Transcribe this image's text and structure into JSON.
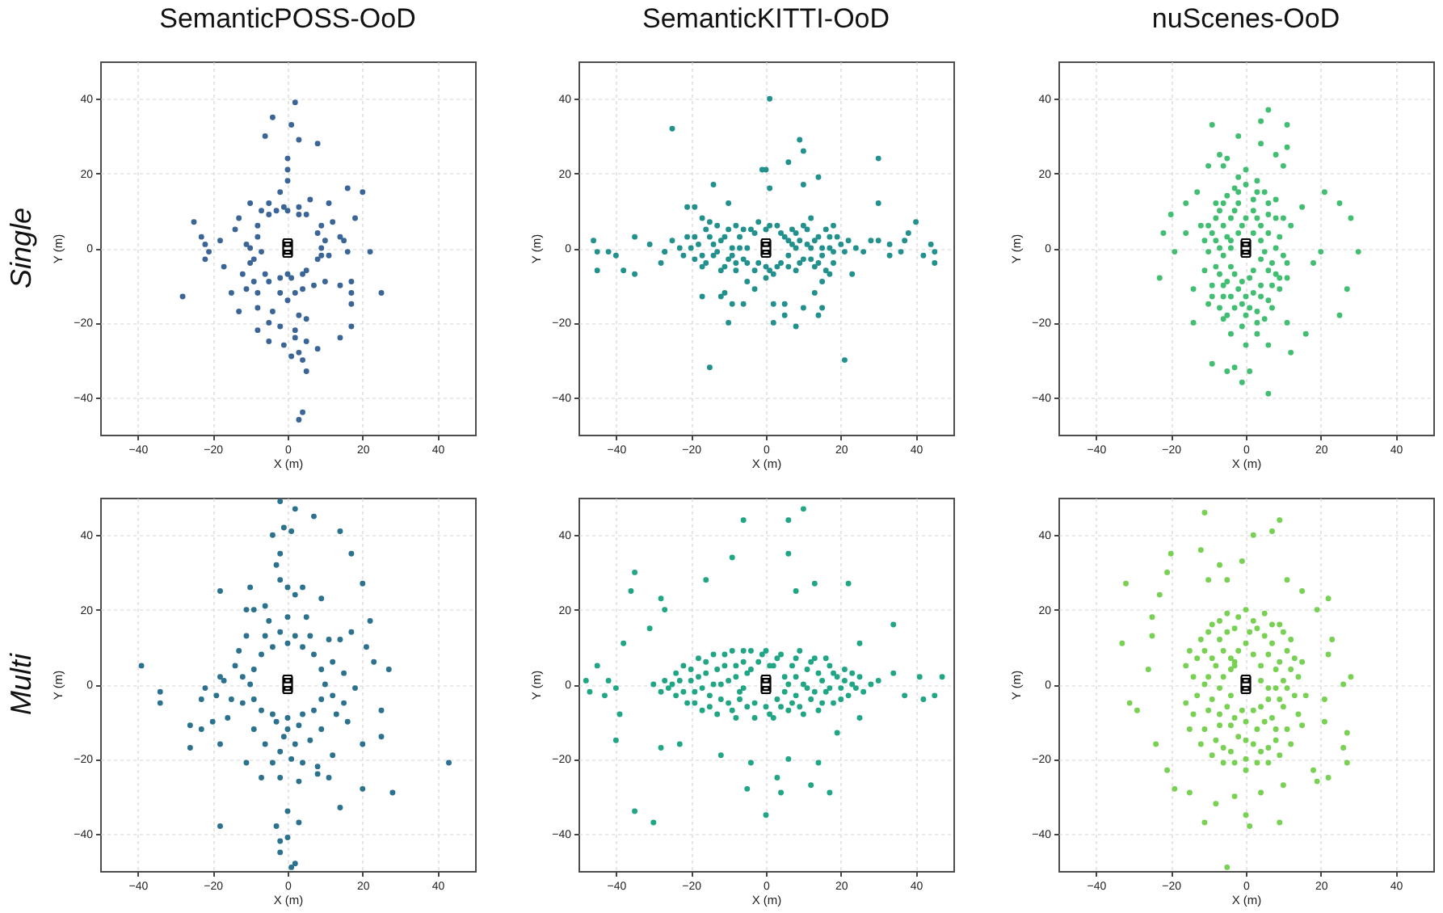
{
  "chart_data": [
    {
      "type": "scatter",
      "title": "SemanticPOSS-OoD",
      "xlabel": "X (m)",
      "ylabel": "Y (m)",
      "annotations": [
        "Single"
      ],
      "color": "#3a6596",
      "marker": "circle",
      "grid": true,
      "xlim": [
        -50,
        50
      ],
      "ylim": [
        -50,
        50
      ],
      "xticks": [
        -40,
        -20,
        0,
        20,
        40
      ],
      "yticks": [
        -40,
        -20,
        0,
        20,
        40
      ],
      "x": [
        2,
        -4,
        1,
        -6,
        3,
        8,
        0,
        0,
        0,
        -2,
        16,
        20,
        -10,
        -5,
        -1,
        3,
        6,
        11,
        18,
        -13,
        -7,
        -3,
        3,
        -25,
        -14,
        9,
        12,
        -23,
        -22,
        -18,
        -21,
        -22,
        -17,
        -11,
        -8,
        -7,
        -9,
        10,
        14,
        15,
        11,
        9,
        16,
        22,
        -28,
        -12,
        -9,
        -6,
        -2,
        1,
        4,
        7,
        10,
        14,
        17,
        17,
        25,
        17,
        -13,
        -8,
        -4,
        0,
        3,
        5,
        -5,
        -2,
        2,
        -8,
        -5,
        -1,
        2,
        5,
        14,
        17,
        1,
        3,
        4,
        5,
        4,
        3,
        8,
        -10,
        -10,
        -5,
        0,
        5,
        8,
        9,
        8,
        5,
        0,
        -5,
        -8,
        -15,
        -11,
        -8,
        -2,
        2,
        4
      ],
      "values": [
        39,
        35,
        33,
        30,
        29,
        28,
        24,
        21,
        18,
        15,
        16,
        15,
        12,
        12,
        11,
        11,
        13,
        12,
        8,
        8,
        10,
        10,
        9,
        7,
        5,
        6,
        7,
        3,
        1,
        2,
        -1,
        -3,
        -5,
        1,
        3,
        -1,
        -3,
        2,
        3,
        2,
        -2,
        -2,
        -1,
        -1,
        -13,
        -7,
        -9,
        -7,
        -8,
        -8,
        -7,
        -10,
        -9,
        -10,
        -9,
        -12,
        -12,
        -15,
        -17,
        -16,
        -17,
        -14,
        -18,
        -19,
        -20,
        -21,
        -22,
        -22,
        -25,
        -26,
        -24,
        -25,
        -24,
        -21,
        -29,
        -28,
        -30,
        -33,
        -44,
        -46,
        -27,
        0,
        -4,
        -9,
        -7,
        -6,
        -3,
        0,
        4,
        9,
        10,
        9,
        6,
        -12,
        -11,
        -12,
        -12,
        -12,
        -11
      ]
    },
    {
      "type": "scatter",
      "title": "SemanticKITTI-OoD",
      "xlabel": "X (m)",
      "ylabel": "Y (m)",
      "color": "#22908c",
      "marker": "circle",
      "grid": true,
      "xlim": [
        -50,
        50
      ],
      "ylim": [
        -50,
        50
      ],
      "xticks": [
        -40,
        -20,
        0,
        20,
        40
      ],
      "yticks": [
        -40,
        -20,
        0,
        20,
        40
      ],
      "x": [
        1,
        -25,
        9,
        10,
        30,
        6,
        -1,
        0,
        14,
        -14,
        1,
        10,
        30,
        -10,
        -19,
        -21,
        -17,
        -15,
        12,
        18,
        40,
        -46,
        -45,
        -42,
        -40,
        -45,
        -38,
        -35,
        -35,
        -31,
        -27,
        -28,
        33,
        30,
        33,
        36,
        37,
        38,
        44,
        42,
        45,
        45,
        -17,
        -12,
        -11,
        -9,
        -6,
        -10,
        -15,
        2,
        5,
        5,
        2,
        8,
        10,
        15,
        14,
        13,
        15,
        17,
        23,
        21,
        -5,
        -3,
        0,
        -20,
        -19,
        -19,
        -17,
        -16,
        -14,
        -14,
        -13,
        -12,
        -11,
        -10,
        -9,
        -8,
        -8,
        -7,
        -6,
        -5,
        -4,
        -3,
        -2,
        0,
        0,
        2,
        3,
        4,
        5,
        7,
        6,
        7,
        8,
        9,
        10,
        11,
        12,
        13,
        14,
        15,
        16,
        17,
        18,
        19,
        21,
        22,
        24,
        -23,
        -22,
        -25,
        26,
        -27,
        28,
        -18,
        -17,
        -15,
        -13,
        -12,
        -11,
        -10,
        -9,
        -7,
        -6,
        -5,
        -3,
        -2,
        1,
        1,
        3,
        4,
        6,
        8,
        8,
        9,
        10,
        11,
        12,
        13,
        14,
        15,
        16,
        17,
        18,
        20,
        -21,
        -16,
        -8,
        6
      ],
      "values": [
        40,
        32,
        29,
        26,
        24,
        23,
        21,
        21,
        19,
        17,
        16,
        17,
        12,
        12,
        11,
        11,
        8,
        7,
        8,
        6,
        7,
        2,
        -1,
        -1,
        -2,
        -6,
        -6,
        -7,
        3,
        1,
        -1,
        -4,
        1,
        2,
        -2,
        -1,
        2,
        4,
        1,
        -2,
        -1,
        -4,
        -13,
        -13,
        -12,
        -15,
        -15,
        -20,
        -32,
        -15,
        -15,
        -18,
        -20,
        -21,
        -16,
        -16,
        -18,
        -12,
        -9,
        -7,
        -7,
        -30,
        -9,
        -11,
        -8,
        0,
        3,
        -3,
        -5,
        5,
        1,
        -2,
        6,
        -6,
        3,
        -3,
        0,
        6,
        -6,
        3,
        -3,
        0,
        5,
        -6,
        7,
        5,
        -5,
        -7,
        6,
        -4,
        3,
        1,
        -2,
        5,
        -6,
        2,
        -3,
        5,
        0,
        -5,
        3,
        -2,
        5,
        0,
        -4,
        3,
        -1,
        2,
        0,
        0,
        -2,
        2,
        -1,
        -1,
        2,
        1,
        -2,
        3,
        -1,
        2,
        -5,
        5,
        -2,
        0,
        5,
        -4,
        4,
        -4,
        6,
        -6,
        -5,
        4,
        2,
        0,
        4,
        -4,
        6,
        1,
        -3,
        2,
        -4,
        0,
        -6,
        3,
        -1,
        1,
        3,
        -4,
        -4,
        -5
      ]
    },
    {
      "type": "scatter",
      "title": "nuScenes-OoD",
      "xlabel": "X (m)",
      "ylabel": "Y (m)",
      "color": "#41be71",
      "marker": "circle",
      "grid": true,
      "xlim": [
        -50,
        50
      ],
      "ylim": [
        -50,
        50
      ],
      "xticks": [
        -40,
        -20,
        0,
        20,
        40
      ],
      "yticks": [
        -40,
        -20,
        0,
        20,
        40
      ],
      "x": [
        6,
        4,
        11,
        -9,
        -2,
        4,
        11,
        -7,
        -5,
        8,
        -10,
        -6,
        10,
        21,
        25,
        28,
        15,
        -13,
        -16,
        -20,
        -22,
        -19,
        -23,
        -16,
        30,
        27,
        25,
        20,
        18,
        -14,
        -14,
        -10,
        -6,
        -4,
        0,
        3,
        6,
        11,
        16,
        12,
        -5,
        -3,
        -1,
        -9,
        1,
        6,
        0,
        -3,
        3,
        -6,
        6,
        -2,
        2,
        -8,
        8,
        -4,
        4,
        -1,
        -9,
        9,
        -5,
        5,
        -7,
        7,
        -10,
        10,
        -4,
        2,
        -8,
        8,
        -1,
        -5,
        4,
        -9,
        9,
        0,
        -6,
        6,
        -3,
        3,
        0,
        -12,
        12,
        -11,
        11,
        -4,
        4,
        0,
        -1,
        -2,
        2,
        -5,
        5,
        -7,
        -3,
        0,
        3,
        6,
        -6,
        -2,
        2,
        6,
        -8,
        -4,
        4,
        8,
        -6,
        6,
        -3,
        1,
        -7,
        7,
        -2,
        2,
        -4,
        4,
        -7,
        7,
        -1,
        1,
        -5,
        5,
        -9,
        9,
        -10,
        10,
        -11,
        11,
        -2,
        3,
        -8,
        8,
        -6,
        3
      ],
      "values": [
        37,
        34,
        33,
        33,
        30,
        28,
        27,
        25,
        24,
        25,
        22,
        22,
        22,
        15,
        12,
        8,
        11,
        15,
        12,
        9,
        4,
        -1,
        -8,
        4,
        -1,
        -11,
        -18,
        -1,
        -4,
        -11,
        -20,
        -15,
        -19,
        -23,
        -26,
        -23,
        -26,
        -20,
        -23,
        -28,
        -33,
        -32,
        -36,
        -31,
        -33,
        -39,
        17,
        16,
        15,
        12,
        12,
        12,
        10,
        8,
        8,
        8,
        6,
        6,
        4,
        3,
        3,
        -1,
        0,
        -4,
        -1,
        -2,
        -5,
        -6,
        -5,
        -7,
        -9,
        -9,
        -10,
        -10,
        -11,
        -13,
        -13,
        -14,
        -16,
        -17,
        -18,
        6,
        6,
        -6,
        -8,
        0,
        2,
        21,
        -21,
        15,
        13,
        14,
        15,
        10,
        10,
        8,
        8,
        9,
        6,
        4,
        4,
        4,
        2,
        2,
        -3,
        0,
        -2,
        -6,
        -7,
        -8,
        -7,
        -10,
        -11,
        -12,
        -13,
        -13,
        -16,
        -16,
        -15,
        -16,
        -18,
        -19,
        -13,
        -8,
        6,
        8,
        2,
        -4,
        19,
        18,
        12,
        13,
        -10,
        -20
      ]
    },
    {
      "type": "scatter",
      "xlabel": "X (m)",
      "ylabel": "Y (m)",
      "annotations": [
        "Multi"
      ],
      "color": "#2c728e",
      "marker": "circle",
      "grid": true,
      "xlim": [
        -50,
        50
      ],
      "ylim": [
        -50,
        50
      ],
      "xticks": [
        -40,
        -20,
        0,
        20,
        40
      ],
      "yticks": [
        -40,
        -20,
        0,
        20,
        40
      ],
      "x": [
        -2,
        2,
        7,
        14,
        17,
        -4,
        -1,
        1,
        -2,
        -3,
        -2,
        0,
        4,
        -10,
        -18,
        2,
        9,
        20,
        22,
        17,
        14,
        21,
        -6,
        -9,
        -11,
        -39,
        -34,
        -34,
        -22,
        -18,
        -19,
        -23,
        23,
        27,
        25,
        25,
        43,
        28,
        20,
        -26,
        -23,
        -26,
        -18,
        -18,
        -3,
        0,
        3,
        -2,
        -2,
        1,
        2,
        0,
        14,
        11,
        8,
        -10,
        -9,
        -7,
        -4,
        0,
        4,
        7,
        9,
        10,
        9,
        7,
        4,
        0,
        -4,
        -7,
        -9,
        -12,
        -12,
        12,
        12,
        -13,
        13,
        -6,
        6,
        -2,
        2,
        -3,
        3,
        0,
        -1,
        2,
        -2,
        1,
        -4,
        4,
        -6,
        6,
        -9,
        9,
        -15,
        15,
        -14,
        15,
        -11,
        11,
        -16,
        16,
        -2,
        3,
        -7,
        8,
        -11,
        12,
        -5,
        5,
        0,
        -17,
        18,
        -20,
        20
      ],
      "values": [
        49,
        47,
        45,
        41,
        35,
        40,
        42,
        41,
        35,
        32,
        28,
        26,
        26,
        26,
        25,
        24,
        23,
        27,
        17,
        14,
        12,
        10,
        21,
        20,
        20,
        5,
        -2,
        -5,
        -1,
        2,
        -3,
        -4,
        6,
        4,
        -7,
        -14,
        -21,
        -29,
        -28,
        -11,
        -12,
        -17,
        -16,
        -38,
        -38,
        -41,
        -37,
        -42,
        -45,
        -49,
        -48,
        -34,
        -33,
        -25,
        -24,
        0,
        4,
        8,
        10,
        11,
        10,
        8,
        4,
        0,
        -4,
        -7,
        -8,
        -9,
        -8,
        -7,
        -4,
        2,
        -5,
        6,
        -3,
        9,
        -8,
        13,
        13,
        14,
        13,
        -10,
        -11,
        -12,
        -14,
        -16,
        -18,
        -20,
        -21,
        -21,
        -16,
        -15,
        -12,
        -12,
        -4,
        -5,
        5,
        3,
        13,
        12,
        -9,
        -10,
        -25,
        -26,
        -25,
        -22,
        -21,
        -19,
        17,
        18,
        18,
        1,
        -1,
        -10,
        -16
      ]
    },
    {
      "type": "scatter",
      "xlabel": "X (m)",
      "ylabel": "Y (m)",
      "color": "#20a585",
      "marker": "circle",
      "grid": true,
      "xlim": [
        -50,
        50
      ],
      "ylim": [
        -50,
        50
      ],
      "xticks": [
        -40,
        -20,
        0,
        20,
        40
      ],
      "yticks": [
        -40,
        -20,
        0,
        20,
        40
      ],
      "x": [
        10,
        -6,
        6,
        -9,
        6,
        -16,
        -35,
        -36,
        8,
        13,
        22,
        -28,
        -27,
        -31,
        -38,
        34,
        25,
        -45,
        -48,
        -47,
        -42,
        -43,
        -40,
        -39,
        -40,
        41,
        47,
        45,
        42,
        37,
        34,
        -28,
        -23,
        -12,
        -4,
        3,
        -5,
        4,
        12,
        17,
        0,
        -35,
        -30,
        6,
        14,
        19,
        25,
        -25,
        -24,
        -24,
        -22,
        -21,
        -20,
        -19,
        -18,
        -17,
        -16,
        -15,
        -14,
        -13,
        -12,
        -11,
        -10,
        -9,
        -8,
        -8,
        -7,
        -6,
        -5,
        -5,
        -4,
        -3,
        -2,
        0,
        0,
        2,
        2,
        3,
        4,
        5,
        5,
        6,
        7,
        8,
        9,
        10,
        10,
        11,
        12,
        13,
        14,
        15,
        16,
        17,
        18,
        19,
        20,
        21,
        22,
        23,
        25,
        26,
        -27,
        -28,
        28,
        30,
        -30,
        -23,
        -22,
        -20,
        -19,
        -18,
        -17,
        -16,
        -15,
        -14,
        -13,
        -12,
        -11,
        -10,
        -9,
        -8,
        -7,
        -6,
        -6,
        -4,
        -3,
        -1,
        1,
        1,
        3,
        4,
        6,
        7,
        8,
        8,
        9,
        11,
        12,
        13,
        14,
        15,
        16,
        17,
        18,
        20,
        21,
        23,
        24,
        -26
      ],
      "values": [
        47,
        44,
        44,
        34,
        35,
        28,
        30,
        25,
        25,
        27,
        27,
        23,
        20,
        15,
        11,
        16,
        11,
        5,
        1,
        -2,
        1,
        -3,
        -1,
        -8,
        -15,
        2,
        2,
        -3,
        -4,
        -3,
        3,
        -17,
        -16,
        -19,
        -21,
        -25,
        -28,
        -29,
        -27,
        -29,
        -35,
        -34,
        -37,
        -20,
        -21,
        -13,
        -9,
        0,
        3,
        -3,
        5,
        -5,
        1,
        -2,
        7,
        -7,
        3,
        -3,
        8,
        -8,
        0,
        5,
        -5,
        9,
        -9,
        2,
        -2,
        6,
        -6,
        3,
        9,
        -9,
        6,
        -6,
        9,
        5,
        -9,
        -4,
        8,
        2,
        -2,
        -7,
        5,
        -3,
        9,
        0,
        -8,
        4,
        -4,
        7,
        -7,
        1,
        -2,
        5,
        -5,
        2,
        -1,
        4,
        -3,
        0,
        2,
        -2,
        1,
        -2,
        0,
        1,
        0,
        1,
        -2,
        4,
        -5,
        2,
        -1,
        6,
        -6,
        0,
        4,
        -4,
        8,
        1,
        -7,
        5,
        -4,
        9,
        -1,
        4,
        -5,
        8,
        -8,
        5,
        7,
        -6,
        0,
        -5,
        7,
        2,
        -6,
        -1,
        6,
        -2,
        3,
        -5,
        7,
        -1,
        3,
        -4,
        1,
        3,
        -1,
        -1
      ]
    },
    {
      "type": "scatter",
      "xlabel": "X (m)",
      "ylabel": "Y (m)",
      "color": "#78d152",
      "marker": "circle",
      "grid": true,
      "xlim": [
        -50,
        50
      ],
      "ylim": [
        -50,
        50
      ],
      "xticks": [
        -40,
        -20,
        0,
        20,
        40
      ],
      "yticks": [
        -40,
        -20,
        0,
        20,
        40
      ],
      "x": [
        -11,
        9,
        2,
        7,
        -12,
        -20,
        -32,
        -21,
        -23,
        -1,
        -7,
        -10,
        -5,
        11,
        15,
        22,
        19,
        -25,
        -25,
        -33,
        -26,
        -31,
        -29,
        23,
        22,
        26,
        28,
        21,
        21,
        27,
        26,
        27,
        22,
        19,
        18,
        -24,
        -21,
        -19,
        -15,
        -11,
        -8,
        -3,
        0,
        1,
        -5,
        9,
        4,
        10,
        0,
        -5,
        5,
        -9,
        9,
        -3,
        3,
        -12,
        12,
        -7,
        7,
        0,
        -13,
        13,
        -9,
        9,
        -4,
        4,
        -14,
        14,
        -10,
        10,
        -6,
        6,
        -4,
        -13,
        13,
        -9,
        9,
        4,
        -1,
        -14,
        14,
        -7,
        7,
        -11,
        11,
        -4,
        3,
        -8,
        8,
        0,
        -4,
        4,
        0,
        -6,
        6,
        -16,
        16,
        -16,
        -3,
        -2,
        2,
        -7,
        7,
        -10,
        -5,
        1,
        5,
        10,
        -11,
        -6,
        -2,
        2,
        6,
        11,
        -8,
        -4,
        8,
        12,
        -11,
        -7,
        -3,
        4,
        8,
        11,
        -5,
        2,
        -10,
        10,
        6,
        -3,
        5,
        -7,
        8,
        0,
        -12,
        12,
        -2,
        2,
        -6,
        6,
        -3,
        3,
        -9,
        9,
        0,
        -15,
        15,
        -15,
        15
      ],
      "values": [
        46,
        44,
        40,
        41,
        36,
        35,
        27,
        30,
        24,
        33,
        32,
        28,
        28,
        28,
        25,
        23,
        20,
        18,
        13,
        11,
        4,
        -5,
        -7,
        12,
        8,
        0,
        2,
        -4,
        -10,
        -13,
        -17,
        -21,
        -25,
        -26,
        -23,
        -16,
        -23,
        -28,
        -29,
        -37,
        -32,
        -30,
        -35,
        -38,
        -49,
        -37,
        -29,
        -27,
        20,
        19,
        19,
        16,
        16,
        15,
        15,
        12,
        12,
        12,
        11,
        11,
        7,
        7,
        7,
        6,
        7,
        5,
        2,
        2,
        2,
        1,
        2,
        -1,
        -3,
        -3,
        -3,
        -4,
        -4,
        -6,
        -7,
        -8,
        -8,
        -8,
        -9,
        -12,
        -12,
        -11,
        -12,
        -15,
        -15,
        -15,
        -18,
        -18,
        -20,
        -21,
        -21,
        5,
        -3,
        -5,
        5,
        18,
        17,
        17,
        16,
        14,
        14,
        14,
        13,
        14,
        9,
        9,
        9,
        8,
        8,
        9,
        5,
        4,
        4,
        4,
        0,
        -1,
        6,
        1,
        -1,
        -1,
        -6,
        -7,
        -7,
        -6,
        -4,
        -9,
        -10,
        -11,
        -12,
        -10,
        -16,
        -16,
        -14,
        -16,
        -17,
        -17,
        -21,
        -21,
        -19,
        -19,
        -23,
        9,
        6,
        -12,
        -11
      ]
    }
  ]
}
